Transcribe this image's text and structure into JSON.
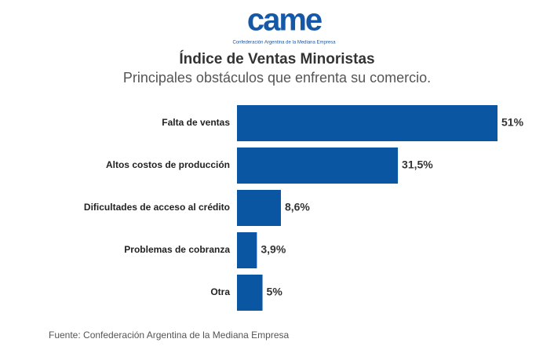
{
  "logo": "came",
  "logo_subtitle": "Confederación Argentina de la Mediana Empresa",
  "chart_data": {
    "type": "bar",
    "orientation": "horizontal",
    "title": "Índice de Ventas Minoristas",
    "subtitle": "Principales obstáculos que enfrenta su comercio.",
    "categories": [
      "Falta de ventas",
      "Altos costos de producción",
      "Dificultades de acceso al crédito",
      "Problemas de cobranza",
      "Otra"
    ],
    "values": [
      51,
      31.5,
      8.6,
      3.9,
      5
    ],
    "value_labels": [
      "51%",
      "31,5%",
      "8,6%",
      "3,9%",
      "5%"
    ],
    "color": "#0b56a3",
    "source": "Fuente: Confederación Argentina de la Mediana Empresa"
  }
}
